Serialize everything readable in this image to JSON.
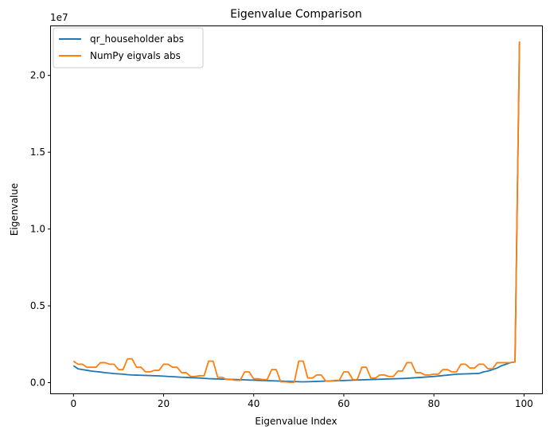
{
  "chart_data": {
    "type": "line",
    "title": "Eigenvalue Comparison",
    "xlabel": "Eigenvalue Index",
    "ylabel": "Eigenvalue",
    "offset_text": "1e7",
    "xlim": [
      -5,
      104
    ],
    "ylim": [
      -700000,
      23200000
    ],
    "xticks": [
      0,
      20,
      40,
      60,
      80,
      100
    ],
    "xtick_labels": [
      "0",
      "20",
      "40",
      "60",
      "80",
      "100"
    ],
    "yticks": [
      0,
      5000000,
      10000000,
      15000000,
      20000000
    ],
    "ytick_labels": [
      "0.0",
      "0.5",
      "1.0",
      "1.5",
      "2.0"
    ],
    "grid": false,
    "legend_position": "top-left",
    "series": [
      {
        "name": "qr_householder abs",
        "color": "#1f77b4",
        "x": [
          0,
          1,
          2,
          3,
          4,
          5,
          6,
          7,
          8,
          9,
          10,
          11,
          12,
          13,
          14,
          15,
          16,
          17,
          18,
          19,
          20,
          21,
          22,
          23,
          24,
          25,
          26,
          27,
          28,
          29,
          30,
          31,
          32,
          33,
          34,
          35,
          36,
          37,
          38,
          39,
          40,
          41,
          42,
          43,
          44,
          45,
          46,
          47,
          48,
          49,
          50,
          51,
          52,
          53,
          54,
          55,
          56,
          57,
          58,
          59,
          60,
          61,
          62,
          63,
          64,
          65,
          66,
          67,
          68,
          69,
          70,
          71,
          72,
          73,
          74,
          75,
          76,
          77,
          78,
          79,
          80,
          81,
          82,
          83,
          84,
          85,
          86,
          87,
          88,
          89,
          90,
          91,
          92,
          93,
          94,
          95,
          96,
          97,
          98,
          99
        ],
        "values": [
          1100000,
          900000,
          850000,
          800000,
          750000,
          720000,
          690000,
          650000,
          620000,
          590000,
          570000,
          550000,
          520000,
          500000,
          490000,
          480000,
          470000,
          460000,
          450000,
          440000,
          420000,
          400000,
          390000,
          370000,
          350000,
          340000,
          320000,
          310000,
          300000,
          280000,
          260000,
          250000,
          240000,
          230000,
          220000,
          210000,
          200000,
          190000,
          180000,
          170000,
          160000,
          150000,
          140000,
          130000,
          120000,
          110000,
          100000,
          90000,
          80000,
          70000,
          60000,
          50000,
          60000,
          70000,
          80000,
          90000,
          100000,
          110000,
          120000,
          130000,
          140000,
          150000,
          160000,
          170000,
          180000,
          190000,
          200000,
          210000,
          220000,
          230000,
          240000,
          250000,
          260000,
          270000,
          280000,
          300000,
          320000,
          340000,
          360000,
          380000,
          400000,
          430000,
          460000,
          490000,
          520000,
          550000,
          560000,
          570000,
          580000,
          590000,
          600000,
          700000,
          750000,
          850000,
          950000,
          1100000,
          1200000,
          1300000,
          1350000,
          22200000
        ]
      },
      {
        "name": "NumPy eigvals abs",
        "color": "#ff7f0e",
        "x": [
          0,
          1,
          2,
          3,
          4,
          5,
          6,
          7,
          8,
          9,
          10,
          11,
          12,
          13,
          14,
          15,
          16,
          17,
          18,
          19,
          20,
          21,
          22,
          23,
          24,
          25,
          26,
          27,
          28,
          29,
          30,
          31,
          32,
          33,
          34,
          35,
          36,
          37,
          38,
          39,
          40,
          41,
          42,
          43,
          44,
          45,
          46,
          47,
          48,
          49,
          50,
          51,
          52,
          53,
          54,
          55,
          56,
          57,
          58,
          59,
          60,
          61,
          62,
          63,
          64,
          65,
          66,
          67,
          68,
          69,
          70,
          71,
          72,
          73,
          74,
          75,
          76,
          77,
          78,
          79,
          80,
          81,
          82,
          83,
          84,
          85,
          86,
          87,
          88,
          89,
          90,
          91,
          92,
          93,
          94,
          95,
          96,
          97,
          98,
          99
        ],
        "values": [
          1400000,
          1200000,
          1200000,
          1000000,
          1000000,
          1000000,
          1300000,
          1300000,
          1200000,
          1200000,
          850000,
          850000,
          1550000,
          1550000,
          1000000,
          1000000,
          700000,
          700000,
          800000,
          800000,
          1200000,
          1200000,
          1000000,
          1000000,
          650000,
          650000,
          400000,
          400000,
          450000,
          450000,
          1400000,
          1400000,
          350000,
          350000,
          200000,
          200000,
          150000,
          150000,
          700000,
          700000,
          250000,
          250000,
          200000,
          200000,
          850000,
          850000,
          50000,
          50000,
          20000,
          20000,
          1400000,
          1400000,
          300000,
          300000,
          500000,
          500000,
          100000,
          100000,
          150000,
          150000,
          700000,
          700000,
          200000,
          200000,
          1000000,
          1000000,
          300000,
          300000,
          500000,
          500000,
          400000,
          400000,
          750000,
          750000,
          1300000,
          1300000,
          650000,
          650000,
          500000,
          500000,
          550000,
          550000,
          850000,
          850000,
          700000,
          700000,
          1200000,
          1200000,
          950000,
          950000,
          1200000,
          1200000,
          900000,
          900000,
          1300000,
          1300000,
          1300000,
          1300000,
          1350000,
          22200000
        ]
      }
    ]
  }
}
